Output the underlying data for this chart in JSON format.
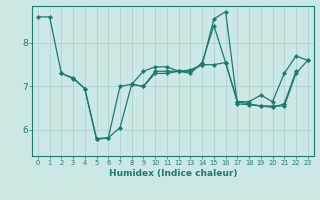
{
  "xlabel": "Humidex (Indice chaleur)",
  "ylabel": "",
  "bg_color": "#cce8e5",
  "line_color": "#1a7a6e",
  "grid_color": "#aacfcc",
  "xlim": [
    -0.5,
    23.5
  ],
  "ylim": [
    5.4,
    8.85
  ],
  "yticks": [
    6,
    7,
    8
  ],
  "xticks": [
    0,
    1,
    2,
    3,
    4,
    5,
    6,
    7,
    8,
    9,
    10,
    11,
    12,
    13,
    14,
    15,
    16,
    17,
    18,
    19,
    20,
    21,
    22,
    23
  ],
  "series": [
    {
      "x": [
        0,
        1,
        2,
        3,
        4,
        5,
        6,
        7,
        8,
        9,
        10,
        11,
        12,
        13,
        14,
        15,
        16,
        17,
        18,
        19,
        20,
        21,
        22,
        23
      ],
      "y": [
        8.6,
        8.6,
        7.3,
        7.2,
        6.95,
        5.8,
        5.82,
        6.05,
        7.05,
        7.0,
        7.35,
        7.35,
        7.35,
        7.3,
        7.55,
        8.4,
        7.55,
        6.65,
        6.65,
        6.8,
        6.65,
        7.3,
        7.7,
        7.6
      ]
    },
    {
      "x": [
        2,
        3,
        4,
        5,
        6,
        7,
        8,
        9,
        10,
        11,
        12,
        13,
        14,
        15,
        16,
        17,
        18,
        19,
        20,
        21,
        22
      ],
      "y": [
        7.3,
        7.18,
        6.95,
        5.78,
        5.82,
        7.0,
        7.05,
        7.35,
        7.45,
        7.45,
        7.35,
        7.38,
        7.5,
        8.55,
        8.72,
        6.6,
        6.58,
        6.55,
        6.52,
        6.6,
        7.35
      ]
    },
    {
      "x": [
        8,
        9,
        10,
        11,
        12,
        13,
        14,
        15,
        16,
        17,
        18,
        19,
        20,
        21,
        22,
        23
      ],
      "y": [
        7.05,
        7.0,
        7.3,
        7.3,
        7.35,
        7.35,
        7.5,
        7.5,
        7.55,
        6.65,
        6.6,
        6.55,
        6.55,
        6.55,
        7.3,
        7.6
      ]
    }
  ]
}
